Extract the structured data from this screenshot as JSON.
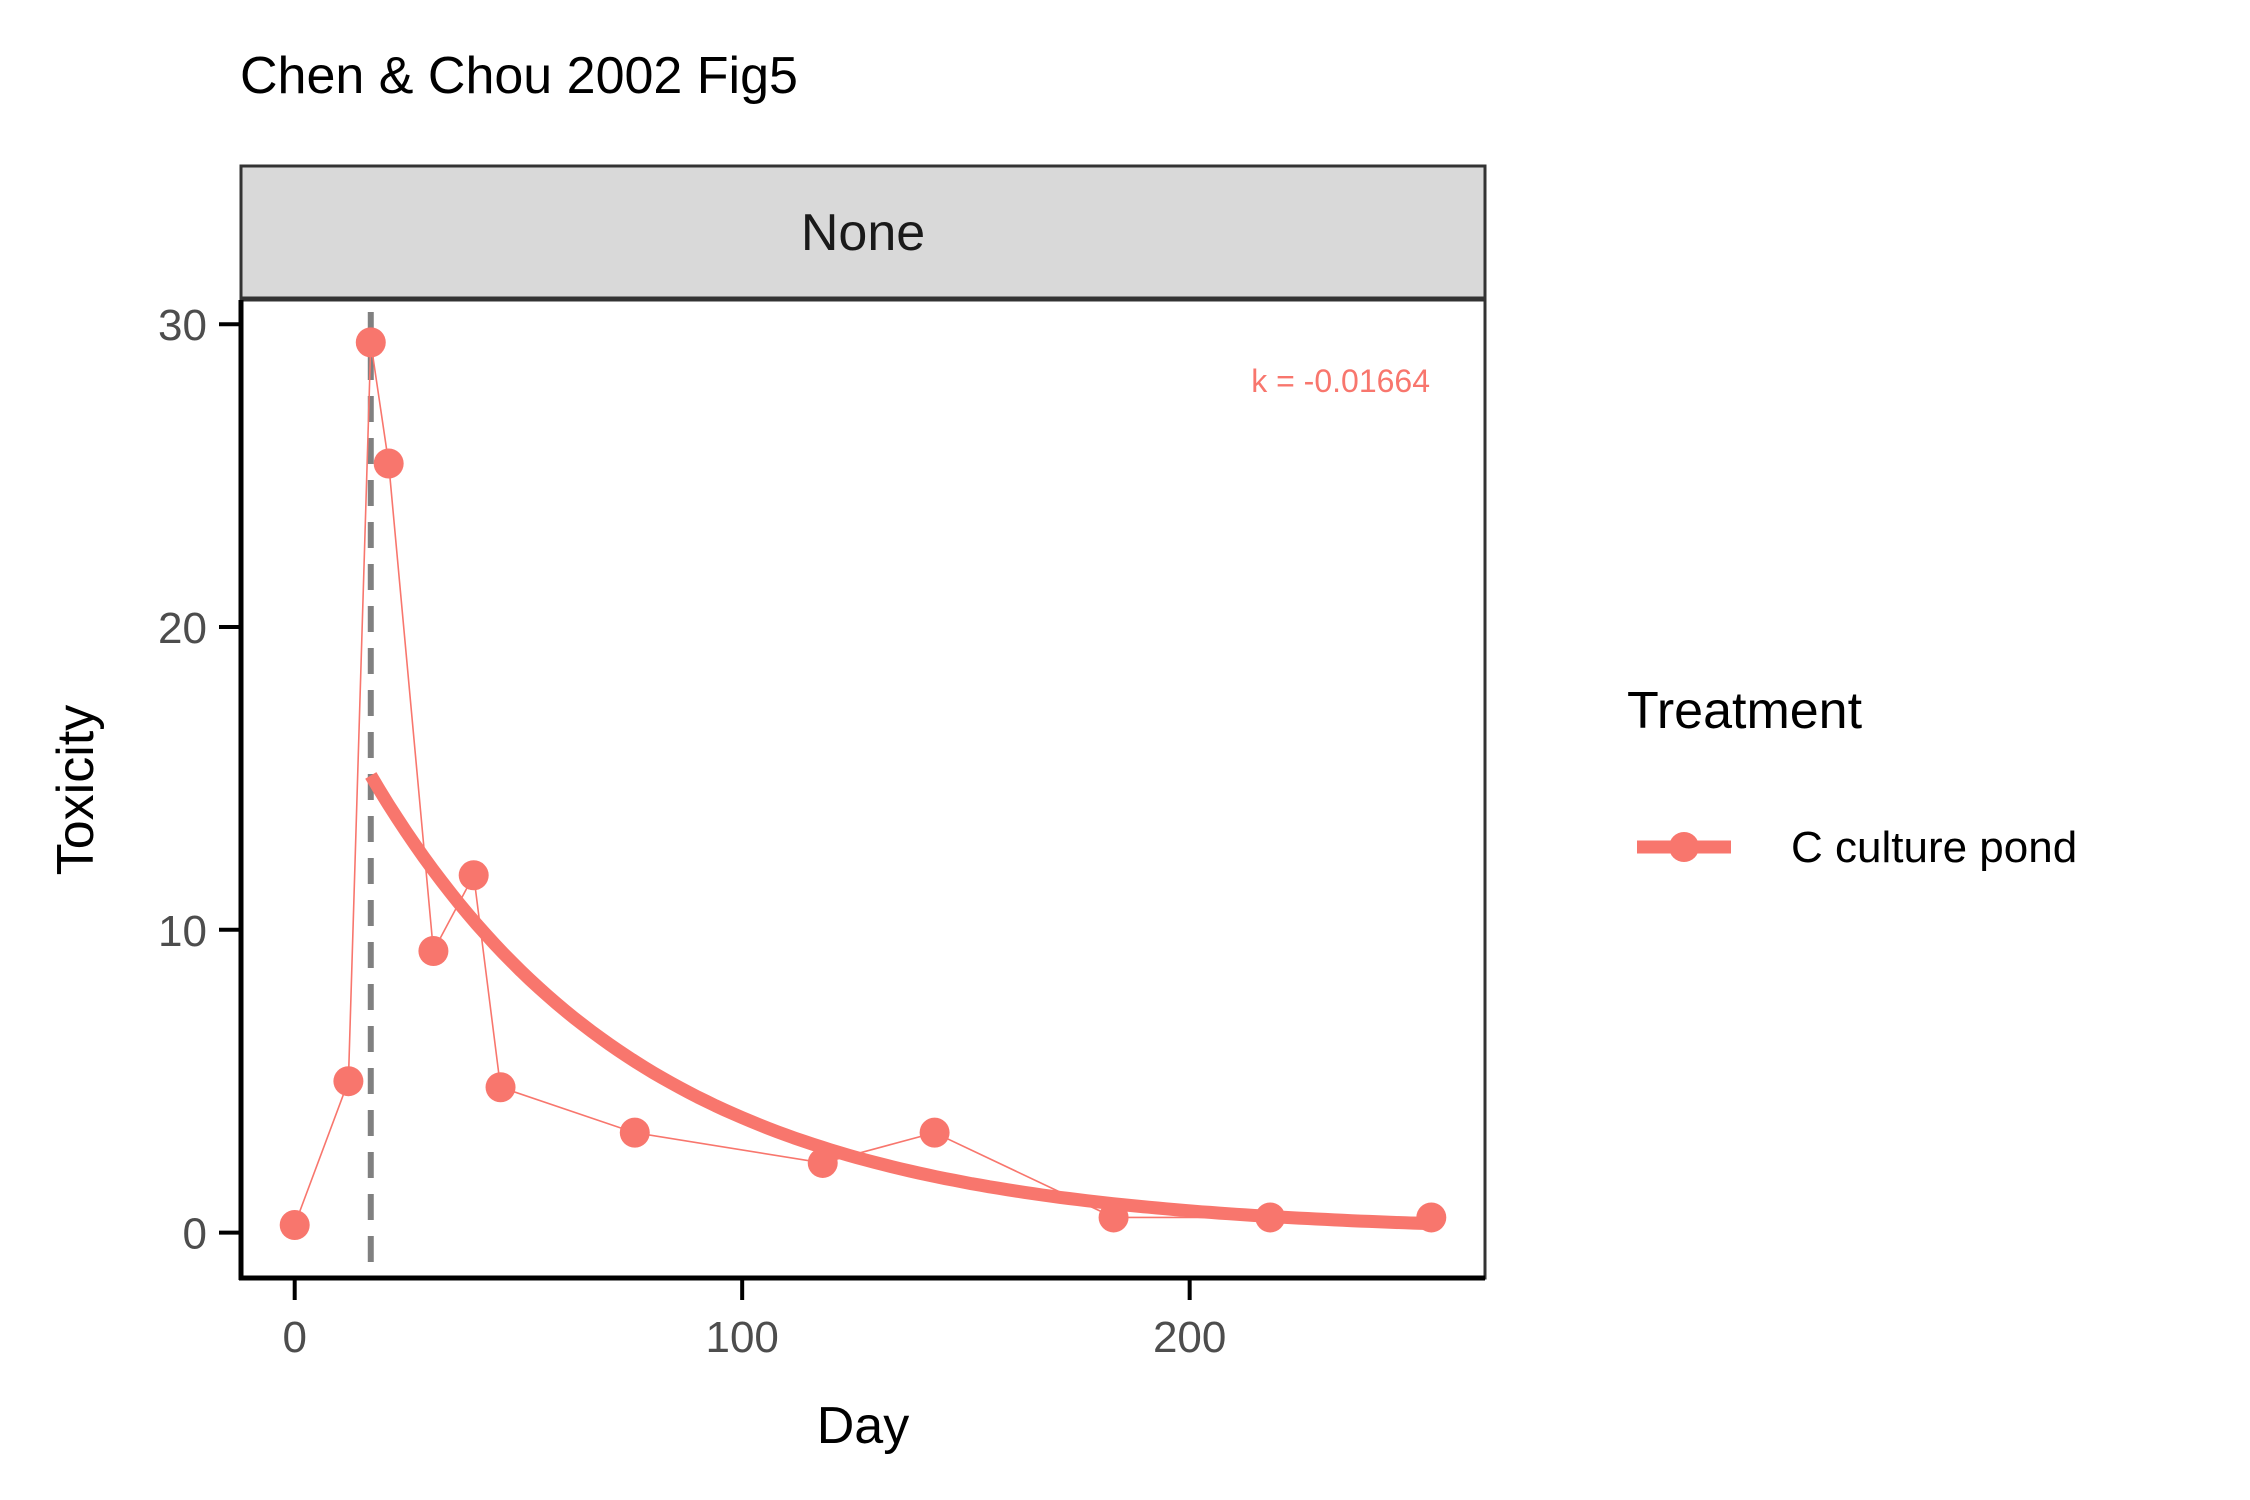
{
  "chart_data": {
    "type": "line",
    "title": "Chen & Chou 2002 Fig5",
    "facet_label": "None",
    "xlabel": "Day",
    "ylabel": "Toxicity",
    "xlim": [
      -12,
      266
    ],
    "ylim": [
      -1.5,
      30.8
    ],
    "x_ticks": [
      0,
      100,
      200
    ],
    "y_ticks": [
      0,
      10,
      20,
      30
    ],
    "grid": false,
    "legend_position": "right",
    "legend_title": "Treatment",
    "colors": {
      "series": "#F8766D",
      "vline": "#808080"
    },
    "series": [
      {
        "name": "C culture pond",
        "x": [
          0,
          12,
          17,
          21,
          31,
          40,
          46,
          76,
          118,
          143,
          183,
          218,
          254
        ],
        "y": [
          0.25,
          5.0,
          29.4,
          25.4,
          9.3,
          11.8,
          4.8,
          3.3,
          2.3,
          3.3,
          0.5,
          0.5,
          0.5
        ]
      }
    ],
    "fit": {
      "k": -0.01664,
      "label": "k = -0.01664",
      "x_start": 17,
      "x_end": 254,
      "y0": 15.1
    },
    "vline_x": 17
  }
}
